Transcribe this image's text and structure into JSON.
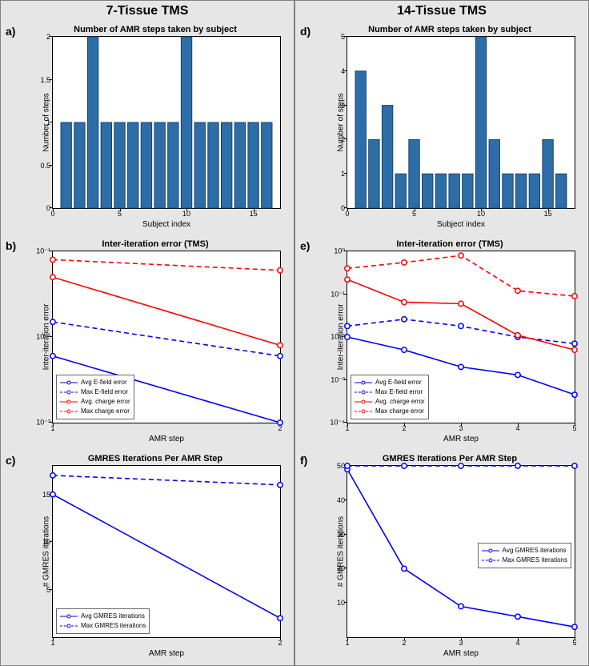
{
  "columns": [
    {
      "header": "7-Tissue TMS"
    },
    {
      "header": "14-Tissue TMS"
    }
  ],
  "colors": {
    "bar_fill": "#2d6ea8",
    "bar_edge": "#1a4266",
    "blue": "#0000ff",
    "red": "#ff0000",
    "axes_bg": "#ffffff",
    "panel_bg": "#e6e6e6"
  },
  "panels": {
    "a": {
      "label": "a)",
      "title": "Number of AMR steps taken by subject",
      "xlabel": "Subject index",
      "ylabel": "Number of steps",
      "type": "bar",
      "ylim": [
        0,
        2
      ],
      "yticks": [
        0,
        0.5,
        1,
        1.5,
        2
      ],
      "xlim": [
        0,
        17
      ],
      "xticks": [
        0,
        5,
        10,
        15
      ],
      "x": [
        1,
        2,
        3,
        4,
        5,
        6,
        7,
        8,
        9,
        10,
        11,
        12,
        13,
        14,
        15,
        16
      ],
      "values": [
        1,
        1,
        2,
        1,
        1,
        1,
        1,
        1,
        1,
        2,
        1,
        1,
        1,
        1,
        1,
        1
      ],
      "bar_width": 0.8
    },
    "b": {
      "label": "b)",
      "title": "Inter-iteration error (TMS)",
      "xlabel": "AMR step",
      "ylabel": "Inter-iteration error",
      "type": "semilogy",
      "xlim": [
        1,
        2
      ],
      "xticks": [
        1,
        2
      ],
      "ylim_exp": [
        -3,
        -1
      ],
      "yticks_exp": [
        -3,
        -2,
        -1
      ],
      "series": [
        {
          "name": "Avg E-field error",
          "color": "#0000ff",
          "dash": false,
          "marker": true,
          "x": [
            1,
            2
          ],
          "y": [
            0.006,
            0.001
          ]
        },
        {
          "name": "Max E-field error",
          "color": "#0000ff",
          "dash": true,
          "marker": true,
          "x": [
            1,
            2
          ],
          "y": [
            0.015,
            0.006
          ]
        },
        {
          "name": "Avg. charge error",
          "color": "#ff0000",
          "dash": false,
          "marker": true,
          "x": [
            1,
            2
          ],
          "y": [
            0.05,
            0.008
          ]
        },
        {
          "name": "Max charge error",
          "color": "#ff0000",
          "dash": true,
          "marker": true,
          "x": [
            1,
            2
          ],
          "y": [
            0.08,
            0.06
          ]
        }
      ],
      "legend_pos": "bottom-left"
    },
    "c": {
      "label": "c)",
      "title": "GMRES Iterations Per AMR Step",
      "xlabel": "AMR step",
      "ylabel": "# GMRES iterations",
      "type": "linear",
      "xlim": [
        1,
        2
      ],
      "xticks": [
        1,
        2
      ],
      "ylim": [
        0,
        18
      ],
      "yticks": [
        5,
        10,
        15
      ],
      "series": [
        {
          "name": "Avg GMRES iterations",
          "color": "#0000ff",
          "dash": false,
          "marker": true,
          "x": [
            1,
            2
          ],
          "y": [
            15,
            2
          ]
        },
        {
          "name": "Max GMRES iterations",
          "color": "#0000ff",
          "dash": true,
          "marker": true,
          "x": [
            1,
            2
          ],
          "y": [
            17,
            16
          ]
        }
      ],
      "legend_pos": "bottom-left"
    },
    "d": {
      "label": "d)",
      "title": "Number of AMR steps taken by subject",
      "xlabel": "Subject index",
      "ylabel": "Number of steps",
      "type": "bar",
      "ylim": [
        0,
        5
      ],
      "yticks": [
        0,
        1,
        2,
        3,
        4,
        5
      ],
      "xlim": [
        0,
        17
      ],
      "xticks": [
        0,
        5,
        10,
        15
      ],
      "x": [
        1,
        2,
        3,
        4,
        5,
        6,
        7,
        8,
        9,
        10,
        11,
        12,
        13,
        14,
        15,
        16
      ],
      "values": [
        4,
        2,
        3,
        1,
        2,
        1,
        1,
        1,
        1,
        5,
        2,
        1,
        1,
        1,
        2,
        1
      ],
      "bar_width": 0.8
    },
    "e": {
      "label": "e)",
      "title": "Inter-iteration error (TMS)",
      "xlabel": "AMR step",
      "ylabel": "Inter-iteration error",
      "type": "semilogy",
      "xlim": [
        1,
        5
      ],
      "xticks": [
        1,
        2,
        3,
        4,
        5
      ],
      "ylim_exp": [
        -4,
        0
      ],
      "yticks_exp": [
        -4,
        -3,
        -2,
        -1,
        0
      ],
      "series": [
        {
          "name": "Avg E-field error",
          "color": "#0000ff",
          "dash": false,
          "marker": true,
          "x": [
            1,
            2,
            3,
            4,
            5
          ],
          "y": [
            0.01,
            0.005,
            0.002,
            0.0013,
            0.00045
          ]
        },
        {
          "name": "Max E-field error",
          "color": "#0000ff",
          "dash": true,
          "marker": true,
          "x": [
            1,
            2,
            3,
            4,
            5
          ],
          "y": [
            0.018,
            0.026,
            0.018,
            0.01,
            0.007
          ]
        },
        {
          "name": "Avg. charge error",
          "color": "#ff0000",
          "dash": false,
          "marker": true,
          "x": [
            1,
            2,
            3,
            4,
            5
          ],
          "y": [
            0.22,
            0.065,
            0.06,
            0.011,
            0.005
          ]
        },
        {
          "name": "Max charge error",
          "color": "#ff0000",
          "dash": true,
          "marker": true,
          "x": [
            1,
            2,
            3,
            4,
            5
          ],
          "y": [
            0.4,
            0.55,
            0.8,
            0.12,
            0.09
          ]
        }
      ],
      "legend_pos": "bottom-left"
    },
    "f": {
      "label": "f)",
      "title": "GMRES Iterations Per AMR Step",
      "xlabel": "AMR step",
      "ylabel": "# GMRES iterations",
      "type": "linear",
      "xlim": [
        1,
        5
      ],
      "xticks": [
        1,
        2,
        3,
        4,
        5
      ],
      "ylim": [
        0,
        50
      ],
      "yticks": [
        10,
        20,
        30,
        40,
        50
      ],
      "series": [
        {
          "name": "Avg GMRES iterations",
          "color": "#0000ff",
          "dash": false,
          "marker": true,
          "x": [
            1,
            2,
            3,
            4,
            5
          ],
          "y": [
            49,
            20,
            9,
            6,
            3
          ]
        },
        {
          "name": "Max GMRES iterations",
          "color": "#0000ff",
          "dash": true,
          "marker": true,
          "x": [
            1,
            2,
            3,
            4,
            5
          ],
          "y": [
            50,
            50,
            50,
            50,
            50
          ]
        }
      ],
      "legend_pos": "middle-right"
    }
  }
}
